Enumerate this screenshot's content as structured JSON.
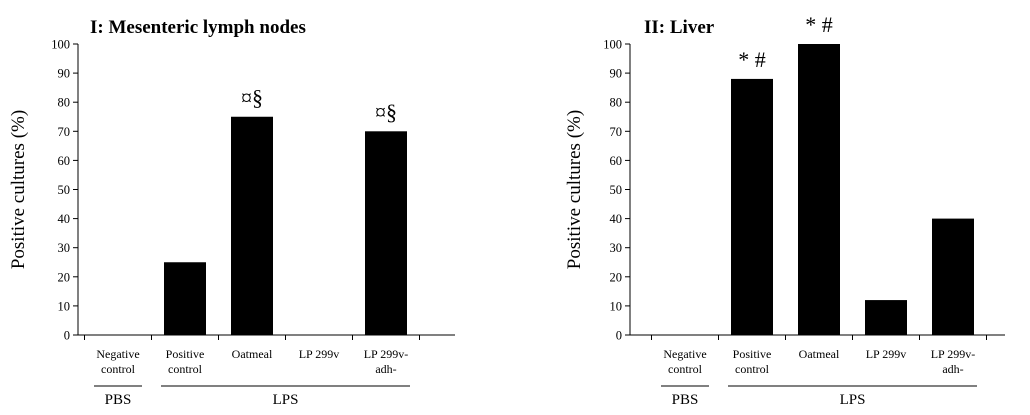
{
  "chart_data": [
    {
      "type": "bar",
      "title": "I: Mesenteric lymph nodes",
      "ylabel": "Positive cultures (%)",
      "ylim": [
        0,
        100
      ],
      "yticks": [
        0,
        10,
        20,
        30,
        40,
        50,
        60,
        70,
        80,
        90,
        100
      ],
      "grid": false,
      "categories": [
        [
          "Negative",
          "control"
        ],
        [
          "Positive",
          "control"
        ],
        [
          "Oatmeal"
        ],
        [
          "LP 299v"
        ],
        [
          "LP 299v-",
          "adh-"
        ]
      ],
      "values": [
        0,
        25,
        75,
        0,
        70
      ],
      "annotations": [
        "",
        "",
        "¤§",
        "",
        "¤§"
      ],
      "groups": [
        {
          "label": "PBS",
          "categories": [
            0
          ]
        },
        {
          "label": "LPS",
          "categories": [
            1,
            2,
            3,
            4
          ]
        }
      ],
      "bar_color": "#000000"
    },
    {
      "type": "bar",
      "title": "II: Liver",
      "ylabel": "Positive cultures (%)",
      "ylim": [
        0,
        100
      ],
      "yticks": [
        0,
        10,
        20,
        30,
        40,
        50,
        60,
        70,
        80,
        90,
        100
      ],
      "grid": false,
      "categories": [
        [
          "Negative",
          "control"
        ],
        [
          "Positive",
          "control"
        ],
        [
          "Oatmeal"
        ],
        [
          "LP 299v"
        ],
        [
          "LP 299v-",
          "adh-"
        ]
      ],
      "values": [
        0,
        88,
        100,
        12,
        40
      ],
      "annotations": [
        "",
        "* #",
        "* #",
        "",
        ""
      ],
      "groups": [
        {
          "label": "PBS",
          "categories": [
            0
          ]
        },
        {
          "label": "LPS",
          "categories": [
            1,
            2,
            3,
            4
          ]
        }
      ],
      "bar_color": "#000000"
    }
  ]
}
